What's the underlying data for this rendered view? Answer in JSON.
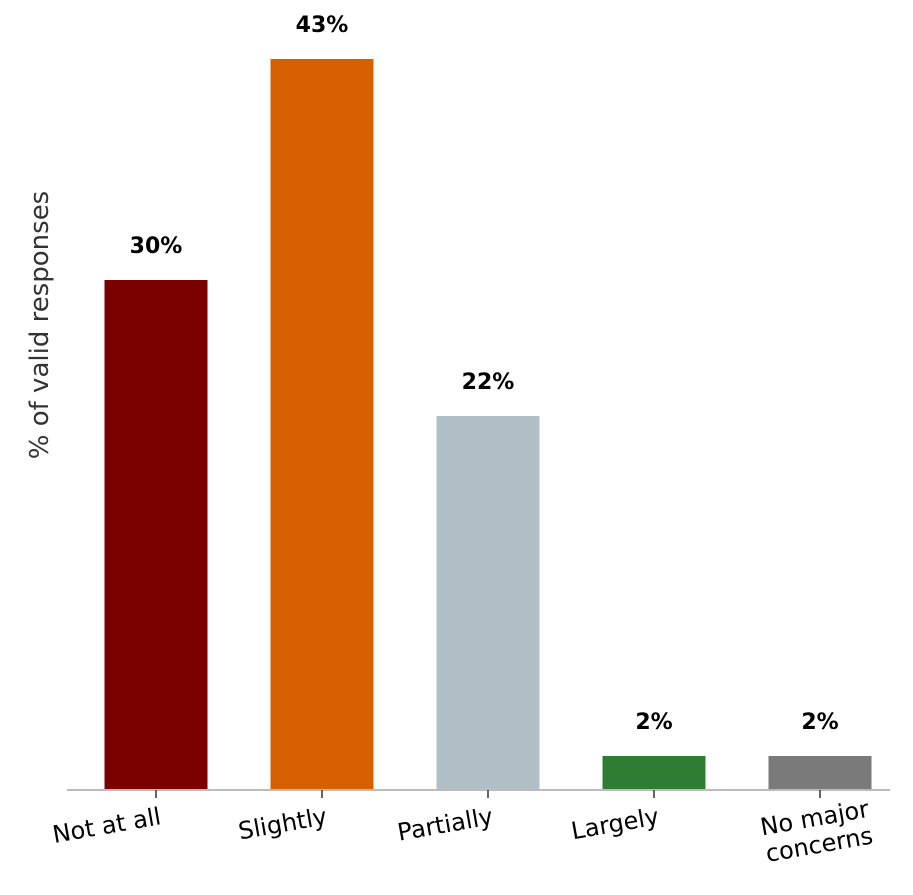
{
  "chart_data": {
    "type": "bar",
    "title": "",
    "xlabel": "",
    "ylabel": "% of valid responses",
    "categories": [
      [
        "Not at all"
      ],
      [
        "Slightly"
      ],
      [
        "Partially"
      ],
      [
        "Largely"
      ],
      [
        "No major",
        "concerns"
      ]
    ],
    "values": [
      30,
      43,
      22,
      2,
      2
    ],
    "data_labels": [
      "30%",
      "43%",
      "22%",
      "2%",
      "2%"
    ],
    "colors": [
      "#7b0000",
      "#d66000",
      "#b1bec5",
      "#2e7d32",
      "#7a7a7a"
    ],
    "axis_color": "#bbbbbb",
    "tick_color": "#333333",
    "grid": false,
    "y_ticks_visible": false
  }
}
